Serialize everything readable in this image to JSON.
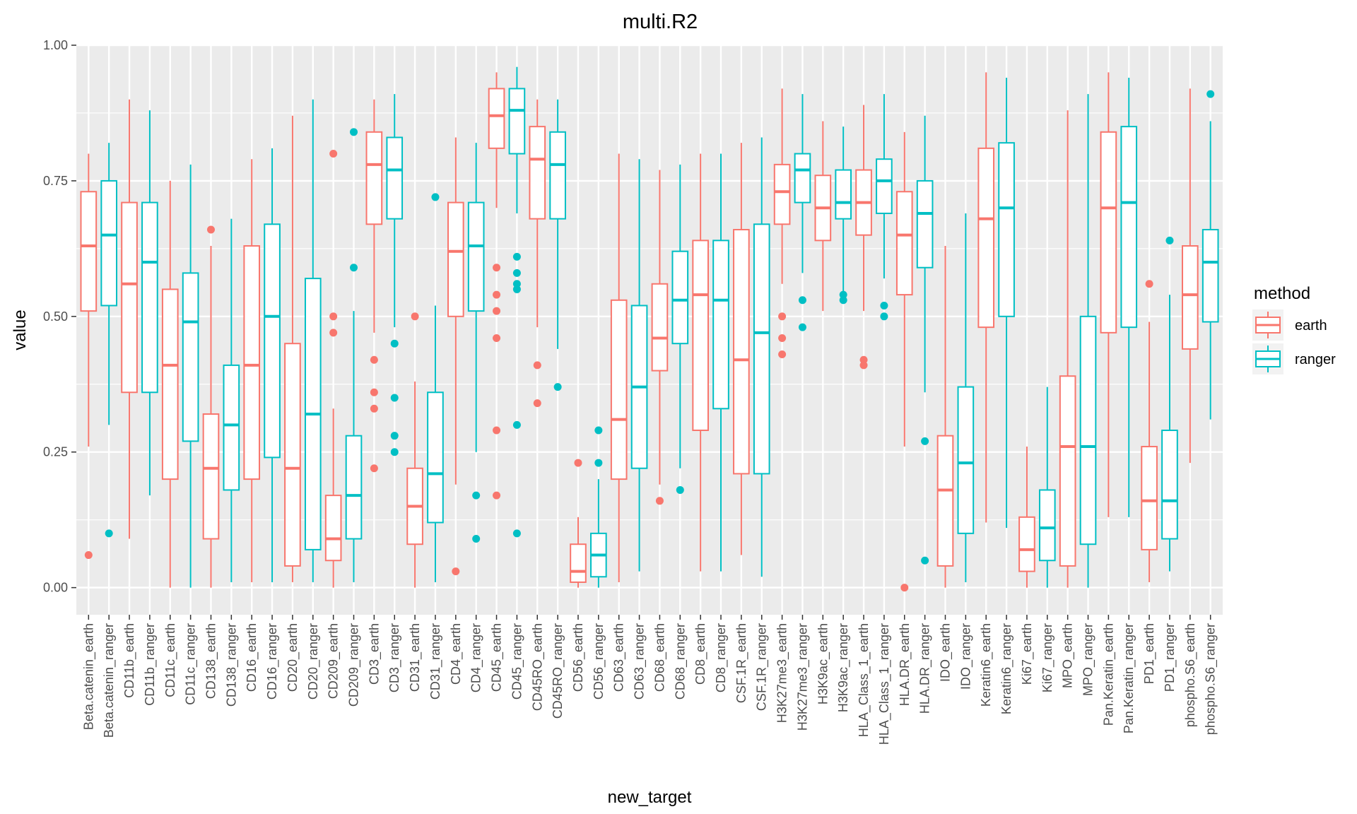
{
  "chart_data": {
    "type": "box",
    "title": "multi.R2",
    "xlabel": "new_target",
    "ylabel": "value",
    "ylim": [
      -0.05,
      1.0
    ],
    "yticks": [
      "0.00",
      "0.25",
      "0.50",
      "0.75",
      "1.00"
    ],
    "ytick_values": [
      0,
      0.25,
      0.5,
      0.75,
      1.0
    ],
    "legend": {
      "title": "method",
      "position": "right",
      "items": [
        {
          "label": "earth",
          "color": "#F8766D"
        },
        {
          "label": "ranger",
          "color": "#00BFC4"
        }
      ]
    },
    "boxes": [
      {
        "category": "Beta.catenin_earth",
        "method": "earth",
        "min": 0.26,
        "q1": 0.51,
        "median": 0.63,
        "q3": 0.73,
        "max": 0.8,
        "outliers": [
          0.06
        ]
      },
      {
        "category": "Beta.catenin_ranger",
        "method": "ranger",
        "min": 0.3,
        "q1": 0.52,
        "median": 0.65,
        "q3": 0.75,
        "max": 0.82,
        "outliers": [
          0.1
        ]
      },
      {
        "category": "CD11b_earth",
        "method": "earth",
        "min": 0.09,
        "q1": 0.36,
        "median": 0.56,
        "q3": 0.71,
        "max": 0.9,
        "outliers": []
      },
      {
        "category": "CD11b_ranger",
        "method": "ranger",
        "min": 0.17,
        "q1": 0.36,
        "median": 0.6,
        "q3": 0.71,
        "max": 0.88,
        "outliers": []
      },
      {
        "category": "CD11c_earth",
        "method": "earth",
        "min": 0.0,
        "q1": 0.2,
        "median": 0.41,
        "q3": 0.55,
        "max": 0.75,
        "outliers": []
      },
      {
        "category": "CD11c_ranger",
        "method": "ranger",
        "min": 0.0,
        "q1": 0.27,
        "median": 0.49,
        "q3": 0.58,
        "max": 0.78,
        "outliers": []
      },
      {
        "category": "CD138_earth",
        "method": "earth",
        "min": 0.0,
        "q1": 0.09,
        "median": 0.22,
        "q3": 0.32,
        "max": 0.63,
        "outliers": [
          0.66
        ]
      },
      {
        "category": "CD138_ranger",
        "method": "ranger",
        "min": 0.01,
        "q1": 0.18,
        "median": 0.3,
        "q3": 0.41,
        "max": 0.68,
        "outliers": []
      },
      {
        "category": "CD16_earth",
        "method": "earth",
        "min": 0.01,
        "q1": 0.2,
        "median": 0.41,
        "q3": 0.63,
        "max": 0.79,
        "outliers": []
      },
      {
        "category": "CD16_ranger",
        "method": "ranger",
        "min": 0.01,
        "q1": 0.24,
        "median": 0.5,
        "q3": 0.67,
        "max": 0.81,
        "outliers": []
      },
      {
        "category": "CD20_earth",
        "method": "earth",
        "min": 0.01,
        "q1": 0.04,
        "median": 0.22,
        "q3": 0.45,
        "max": 0.87,
        "outliers": []
      },
      {
        "category": "CD20_ranger",
        "method": "ranger",
        "min": 0.01,
        "q1": 0.07,
        "median": 0.32,
        "q3": 0.57,
        "max": 0.9,
        "outliers": []
      },
      {
        "category": "CD209_earth",
        "method": "earth",
        "min": 0.0,
        "q1": 0.05,
        "median": 0.09,
        "q3": 0.17,
        "max": 0.33,
        "outliers": [
          0.47,
          0.5,
          0.8
        ]
      },
      {
        "category": "CD209_ranger",
        "method": "ranger",
        "min": 0.01,
        "q1": 0.09,
        "median": 0.17,
        "q3": 0.28,
        "max": 0.51,
        "outliers": [
          0.59,
          0.84
        ]
      },
      {
        "category": "CD3_earth",
        "method": "earth",
        "min": 0.47,
        "q1": 0.67,
        "median": 0.78,
        "q3": 0.84,
        "max": 0.9,
        "outliers": [
          0.22,
          0.33,
          0.36,
          0.42
        ]
      },
      {
        "category": "CD3_ranger",
        "method": "ranger",
        "min": 0.48,
        "q1": 0.68,
        "median": 0.77,
        "q3": 0.83,
        "max": 0.91,
        "outliers": [
          0.25,
          0.28,
          0.35,
          0.45
        ]
      },
      {
        "category": "CD31_earth",
        "method": "earth",
        "min": 0.0,
        "q1": 0.08,
        "median": 0.15,
        "q3": 0.22,
        "max": 0.38,
        "outliers": [
          0.5
        ]
      },
      {
        "category": "CD31_ranger",
        "method": "ranger",
        "min": 0.01,
        "q1": 0.12,
        "median": 0.21,
        "q3": 0.36,
        "max": 0.52,
        "outliers": [
          0.72
        ]
      },
      {
        "category": "CD4_earth",
        "method": "earth",
        "min": 0.19,
        "q1": 0.5,
        "median": 0.62,
        "q3": 0.71,
        "max": 0.83,
        "outliers": [
          0.03
        ]
      },
      {
        "category": "CD4_ranger",
        "method": "ranger",
        "min": 0.25,
        "q1": 0.51,
        "median": 0.63,
        "q3": 0.71,
        "max": 0.82,
        "outliers": [
          0.09,
          0.17
        ]
      },
      {
        "category": "CD45_earth",
        "method": "earth",
        "min": 0.7,
        "q1": 0.81,
        "median": 0.87,
        "q3": 0.92,
        "max": 0.95,
        "outliers": [
          0.17,
          0.29,
          0.46,
          0.51,
          0.54,
          0.59
        ]
      },
      {
        "category": "CD45_ranger",
        "method": "ranger",
        "min": 0.69,
        "q1": 0.8,
        "median": 0.88,
        "q3": 0.92,
        "max": 0.96,
        "outliers": [
          0.1,
          0.3,
          0.55,
          0.56,
          0.58,
          0.61
        ]
      },
      {
        "category": "CD45RO_earth",
        "method": "earth",
        "min": 0.48,
        "q1": 0.68,
        "median": 0.79,
        "q3": 0.85,
        "max": 0.9,
        "outliers": [
          0.34,
          0.41
        ]
      },
      {
        "category": "CD45RO_ranger",
        "method": "ranger",
        "min": 0.44,
        "q1": 0.68,
        "median": 0.78,
        "q3": 0.84,
        "max": 0.9,
        "outliers": [
          0.37
        ]
      },
      {
        "category": "CD56_earth",
        "method": "earth",
        "min": 0.0,
        "q1": 0.01,
        "median": 0.03,
        "q3": 0.08,
        "max": 0.13,
        "outliers": [
          0.23
        ]
      },
      {
        "category": "CD56_ranger",
        "method": "ranger",
        "min": 0.0,
        "q1": 0.02,
        "median": 0.06,
        "q3": 0.1,
        "max": 0.2,
        "outliers": [
          0.23,
          0.29
        ]
      },
      {
        "category": "CD63_earth",
        "method": "earth",
        "min": 0.01,
        "q1": 0.2,
        "median": 0.31,
        "q3": 0.53,
        "max": 0.8,
        "outliers": []
      },
      {
        "category": "CD63_ranger",
        "method": "ranger",
        "min": 0.03,
        "q1": 0.22,
        "median": 0.37,
        "q3": 0.52,
        "max": 0.79,
        "outliers": []
      },
      {
        "category": "CD68_earth",
        "method": "earth",
        "min": 0.19,
        "q1": 0.4,
        "median": 0.46,
        "q3": 0.56,
        "max": 0.77,
        "outliers": [
          0.16
        ]
      },
      {
        "category": "CD68_ranger",
        "method": "ranger",
        "min": 0.22,
        "q1": 0.45,
        "median": 0.53,
        "q3": 0.62,
        "max": 0.78,
        "outliers": [
          0.18
        ]
      },
      {
        "category": "CD8_earth",
        "method": "earth",
        "min": 0.03,
        "q1": 0.29,
        "median": 0.54,
        "q3": 0.64,
        "max": 0.8,
        "outliers": []
      },
      {
        "category": "CD8_ranger",
        "method": "ranger",
        "min": 0.03,
        "q1": 0.33,
        "median": 0.53,
        "q3": 0.64,
        "max": 0.8,
        "outliers": []
      },
      {
        "category": "CSF.1R_earth",
        "method": "earth",
        "min": 0.06,
        "q1": 0.21,
        "median": 0.42,
        "q3": 0.66,
        "max": 0.82,
        "outliers": []
      },
      {
        "category": "CSF.1R_ranger",
        "method": "ranger",
        "min": 0.02,
        "q1": 0.21,
        "median": 0.47,
        "q3": 0.67,
        "max": 0.83,
        "outliers": []
      },
      {
        "category": "H3K27me3_earth",
        "method": "earth",
        "min": 0.56,
        "q1": 0.67,
        "median": 0.73,
        "q3": 0.78,
        "max": 0.92,
        "outliers": [
          0.43,
          0.46,
          0.5
        ]
      },
      {
        "category": "H3K27me3_ranger",
        "method": "ranger",
        "min": 0.58,
        "q1": 0.71,
        "median": 0.77,
        "q3": 0.8,
        "max": 0.91,
        "outliers": [
          0.48,
          0.53
        ]
      },
      {
        "category": "H3K9ac_earth",
        "method": "earth",
        "min": 0.51,
        "q1": 0.64,
        "median": 0.7,
        "q3": 0.76,
        "max": 0.86,
        "outliers": []
      },
      {
        "category": "H3K9ac_ranger",
        "method": "ranger",
        "min": 0.54,
        "q1": 0.68,
        "median": 0.71,
        "q3": 0.77,
        "max": 0.85,
        "outliers": [
          0.53,
          0.54
        ]
      },
      {
        "category": "HLA_Class_1_earth",
        "method": "earth",
        "min": 0.51,
        "q1": 0.65,
        "median": 0.71,
        "q3": 0.77,
        "max": 0.89,
        "outliers": [
          0.41,
          0.42
        ]
      },
      {
        "category": "HLA_Class_1_ranger",
        "method": "ranger",
        "min": 0.57,
        "q1": 0.69,
        "median": 0.75,
        "q3": 0.79,
        "max": 0.91,
        "outliers": [
          0.5,
          0.52
        ]
      },
      {
        "category": "HLA.DR_earth",
        "method": "earth",
        "min": 0.26,
        "q1": 0.54,
        "median": 0.65,
        "q3": 0.73,
        "max": 0.84,
        "outliers": [
          0.0
        ]
      },
      {
        "category": "HLA.DR_ranger",
        "method": "ranger",
        "min": 0.36,
        "q1": 0.59,
        "median": 0.69,
        "q3": 0.75,
        "max": 0.87,
        "outliers": [
          0.05,
          0.27
        ]
      },
      {
        "category": "IDO_earth",
        "method": "earth",
        "min": 0.0,
        "q1": 0.04,
        "median": 0.18,
        "q3": 0.28,
        "max": 0.63,
        "outliers": []
      },
      {
        "category": "IDO_ranger",
        "method": "ranger",
        "min": 0.01,
        "q1": 0.1,
        "median": 0.23,
        "q3": 0.37,
        "max": 0.69,
        "outliers": []
      },
      {
        "category": "Keratin6_earth",
        "method": "earth",
        "min": 0.12,
        "q1": 0.48,
        "median": 0.68,
        "q3": 0.81,
        "max": 0.95,
        "outliers": []
      },
      {
        "category": "Keratin6_ranger",
        "method": "ranger",
        "min": 0.11,
        "q1": 0.5,
        "median": 0.7,
        "q3": 0.82,
        "max": 0.94,
        "outliers": []
      },
      {
        "category": "Ki67_earth",
        "method": "earth",
        "min": 0.0,
        "q1": 0.03,
        "median": 0.07,
        "q3": 0.13,
        "max": 0.26,
        "outliers": []
      },
      {
        "category": "Ki67_ranger",
        "method": "ranger",
        "min": 0.0,
        "q1": 0.05,
        "median": 0.11,
        "q3": 0.18,
        "max": 0.37,
        "outliers": []
      },
      {
        "category": "MPO_earth",
        "method": "earth",
        "min": 0.0,
        "q1": 0.04,
        "median": 0.26,
        "q3": 0.39,
        "max": 0.88,
        "outliers": []
      },
      {
        "category": "MPO_ranger",
        "method": "ranger",
        "min": 0.0,
        "q1": 0.08,
        "median": 0.26,
        "q3": 0.5,
        "max": 0.91,
        "outliers": []
      },
      {
        "category": "Pan.Keratin_earth",
        "method": "earth",
        "min": 0.13,
        "q1": 0.47,
        "median": 0.7,
        "q3": 0.84,
        "max": 0.95,
        "outliers": []
      },
      {
        "category": "Pan.Keratin_ranger",
        "method": "ranger",
        "min": 0.13,
        "q1": 0.48,
        "median": 0.71,
        "q3": 0.85,
        "max": 0.94,
        "outliers": []
      },
      {
        "category": "PD1_earth",
        "method": "earth",
        "min": 0.01,
        "q1": 0.07,
        "median": 0.16,
        "q3": 0.26,
        "max": 0.49,
        "outliers": [
          0.56
        ]
      },
      {
        "category": "PD1_ranger",
        "method": "ranger",
        "min": 0.03,
        "q1": 0.09,
        "median": 0.16,
        "q3": 0.29,
        "max": 0.54,
        "outliers": [
          0.64
        ]
      },
      {
        "category": "phospho.S6_earth",
        "method": "earth",
        "min": 0.23,
        "q1": 0.44,
        "median": 0.54,
        "q3": 0.63,
        "max": 0.92,
        "outliers": []
      },
      {
        "category": "phospho.S6_ranger",
        "method": "ranger",
        "min": 0.31,
        "q1": 0.49,
        "median": 0.6,
        "q3": 0.66,
        "max": 0.86,
        "outliers": [
          0.91
        ]
      }
    ]
  }
}
